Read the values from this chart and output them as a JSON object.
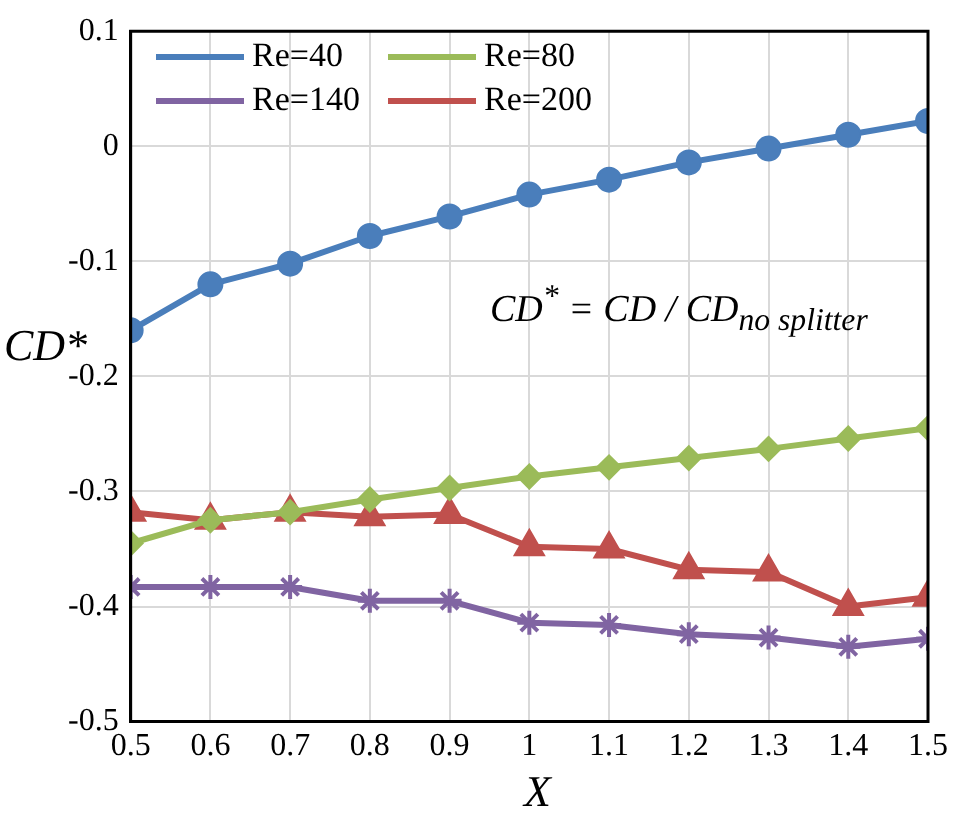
{
  "chart_data": {
    "type": "line",
    "xlabel": "X",
    "ylabel": "CD*",
    "x": [
      0.5,
      0.6,
      0.7,
      0.8,
      0.9,
      1,
      1.1,
      1.2,
      1.3,
      1.4,
      1.5
    ],
    "series": [
      {
        "name": "Re=40",
        "color": "#4a7ebb",
        "marker": "circle",
        "values": [
          -0.16,
          -0.12,
          -0.102,
          -0.078,
          -0.061,
          -0.042,
          -0.029,
          -0.014,
          -0.002,
          0.01,
          0.022
        ]
      },
      {
        "name": "Re=80",
        "color": "#9bbb59",
        "marker": "diamond",
        "values": [
          -0.345,
          -0.325,
          -0.318,
          -0.307,
          -0.297,
          -0.287,
          -0.279,
          -0.271,
          -0.263,
          -0.254,
          -0.245
        ]
      },
      {
        "name": "Re=140",
        "color": "#8064a2",
        "marker": "cross",
        "values": [
          -0.383,
          -0.383,
          -0.383,
          -0.395,
          -0.395,
          -0.414,
          -0.416,
          -0.424,
          -0.427,
          -0.435,
          -0.428
        ]
      },
      {
        "name": "Re=200",
        "color": "#c0504d",
        "marker": "triangle",
        "values": [
          -0.318,
          -0.325,
          -0.318,
          -0.322,
          -0.32,
          -0.348,
          -0.35,
          -0.368,
          -0.37,
          -0.4,
          -0.392
        ]
      }
    ],
    "xlim": [
      0.5,
      1.5
    ],
    "xticks": [
      0.5,
      0.6,
      0.7,
      0.8,
      0.9,
      1,
      1.1,
      1.2,
      1.3,
      1.4,
      1.5
    ],
    "ylim": [
      -0.5,
      0.1
    ],
    "yticks": [
      -0.5,
      -0.4,
      -0.3,
      -0.2,
      -0.1,
      0,
      0.1
    ],
    "grid": true,
    "legend": "top left",
    "line_style": "solid",
    "annotations": [
      "CD$^{*}$ = CD / CD$_{no splitter}$"
    ]
  }
}
